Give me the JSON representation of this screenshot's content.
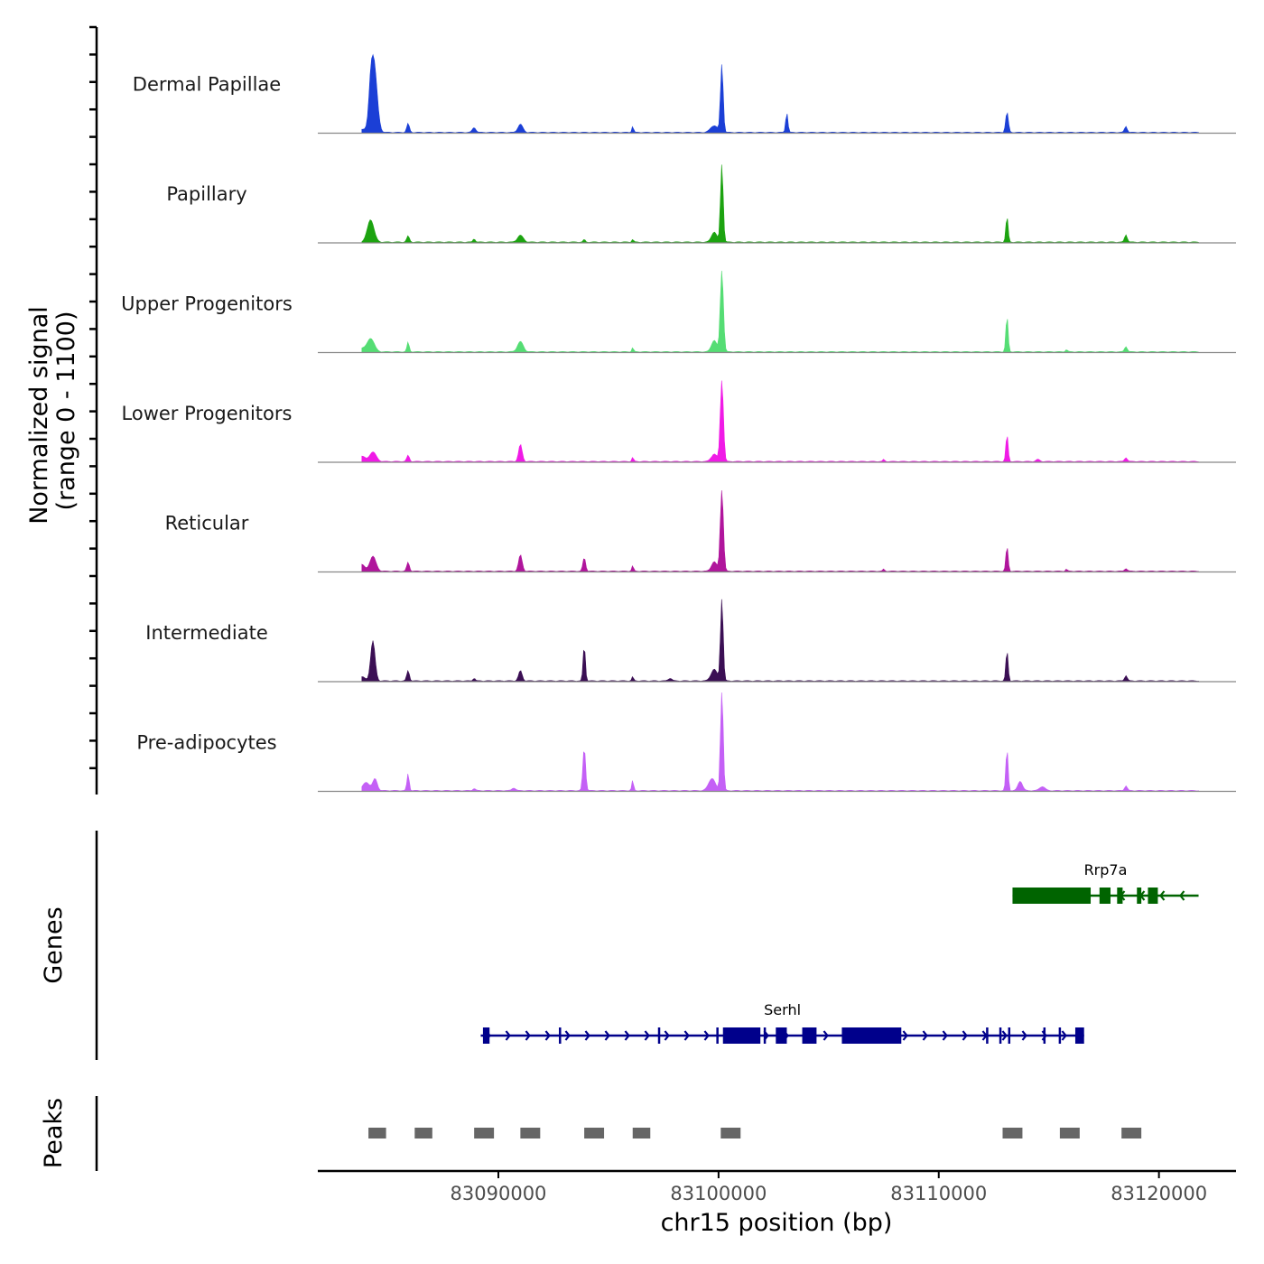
{
  "chart_data": {
    "type": "area",
    "title": "",
    "xlabel": "chr15 position (bp)",
    "ylabel_line1": "Normalized signal",
    "ylabel_line2": "(range 0 - 1100)",
    "ylim": [
      0,
      1100
    ],
    "xlim": [
      83081800,
      83123500
    ],
    "x_ticks": [
      83090000,
      83100000,
      83110000,
      83120000
    ],
    "x_tick_labels": [
      "83090000",
      "83100000",
      "83110000",
      "83120000"
    ],
    "baseline_color": "#888888",
    "tracks": [
      {
        "name": "Dermal Papillae",
        "color": "#1b3fd6",
        "peaks": [
          [
            83083800,
            50,
            180
          ],
          [
            83084200,
            380,
            90
          ],
          [
            83084350,
            1000,
            140
          ],
          [
            83085900,
            130,
            60
          ],
          [
            83088900,
            70,
            80
          ],
          [
            83091000,
            120,
            110
          ],
          [
            83096100,
            90,
            40
          ],
          [
            83099800,
            100,
            160
          ],
          [
            83100150,
            1000,
            60
          ],
          [
            83103100,
            290,
            50
          ],
          [
            83113100,
            300,
            60
          ],
          [
            83118500,
            90,
            60
          ]
        ]
      },
      {
        "name": "Papillary",
        "color": "#1ca310",
        "peaks": [
          [
            83084200,
            330,
            150
          ],
          [
            83085900,
            90,
            60
          ],
          [
            83088900,
            50,
            50
          ],
          [
            83091000,
            100,
            130
          ],
          [
            83093900,
            40,
            40
          ],
          [
            83096100,
            40,
            40
          ],
          [
            83099800,
            150,
            120
          ],
          [
            83100150,
            1150,
            60
          ],
          [
            83113100,
            380,
            50
          ],
          [
            83118500,
            110,
            60
          ]
        ]
      },
      {
        "name": "Upper Progenitors",
        "color": "#55dd74",
        "peaks": [
          [
            83083800,
            50,
            120
          ],
          [
            83084200,
            200,
            160
          ],
          [
            83085900,
            140,
            50
          ],
          [
            83091000,
            150,
            130
          ],
          [
            83096100,
            60,
            40
          ],
          [
            83099800,
            170,
            120
          ],
          [
            83100150,
            1200,
            70
          ],
          [
            83113100,
            530,
            50
          ],
          [
            83115800,
            30,
            50
          ],
          [
            83118500,
            80,
            60
          ]
        ]
      },
      {
        "name": "Lower Progenitors",
        "color": "#f01ae6",
        "peaks": [
          [
            83083800,
            80,
            140
          ],
          [
            83084300,
            140,
            150
          ],
          [
            83085900,
            90,
            60
          ],
          [
            83091000,
            250,
            80
          ],
          [
            83096100,
            60,
            40
          ],
          [
            83099800,
            110,
            130
          ],
          [
            83100150,
            1200,
            70
          ],
          [
            83107500,
            30,
            40
          ],
          [
            83113100,
            400,
            50
          ],
          [
            83114500,
            30,
            80
          ],
          [
            83118500,
            60,
            60
          ]
        ]
      },
      {
        "name": "Reticular",
        "color": "#b0159c",
        "peaks": [
          [
            83083800,
            100,
            120
          ],
          [
            83084300,
            220,
            140
          ],
          [
            83085900,
            130,
            60
          ],
          [
            83091000,
            240,
            80
          ],
          [
            83093900,
            200,
            60
          ],
          [
            83096100,
            80,
            40
          ],
          [
            83099800,
            140,
            120
          ],
          [
            83100150,
            1200,
            70
          ],
          [
            83107500,
            30,
            40
          ],
          [
            83113100,
            370,
            50
          ],
          [
            83115800,
            30,
            40
          ],
          [
            83118500,
            40,
            60
          ]
        ]
      },
      {
        "name": "Intermediate",
        "color": "#3b0f54",
        "peaks": [
          [
            83083800,
            60,
            140
          ],
          [
            83084300,
            590,
            100
          ],
          [
            83085900,
            150,
            60
          ],
          [
            83088900,
            40,
            50
          ],
          [
            83091000,
            150,
            80
          ],
          [
            83093900,
            530,
            50
          ],
          [
            83096100,
            60,
            40
          ],
          [
            83097800,
            40,
            80
          ],
          [
            83099800,
            170,
            140
          ],
          [
            83100150,
            1210,
            60
          ],
          [
            83113100,
            450,
            50
          ],
          [
            83118500,
            80,
            60
          ]
        ]
      },
      {
        "name": "Pre-adipocytes",
        "color": "#c460f6",
        "peaks": [
          [
            83084000,
            120,
            160
          ],
          [
            83084400,
            170,
            100
          ],
          [
            83085900,
            250,
            50
          ],
          [
            83088900,
            30,
            60
          ],
          [
            83090700,
            40,
            80
          ],
          [
            83093900,
            640,
            60
          ],
          [
            83096100,
            150,
            40
          ],
          [
            83099700,
            180,
            150
          ],
          [
            83100150,
            1530,
            60
          ],
          [
            83113100,
            620,
            50
          ],
          [
            83113700,
            140,
            100
          ],
          [
            83114700,
            60,
            120
          ],
          [
            83118500,
            70,
            60
          ]
        ]
      }
    ],
    "genes_label": "Genes",
    "genes": [
      {
        "name": "Rrp7a",
        "color": "#006400",
        "strand": "-",
        "start": 83113350,
        "end": 83121800,
        "exons": [
          [
            83113350,
            83116900
          ],
          [
            83117300,
            83117800
          ],
          [
            83118100,
            83118350
          ],
          [
            83119000,
            83119200
          ],
          [
            83119500,
            83119950
          ]
        ]
      },
      {
        "name": "Serhl",
        "color": "#00008b",
        "strand": "+",
        "start": 83089200,
        "end": 83116600,
        "exons": [
          [
            83089300,
            83089600
          ],
          [
            83100200,
            83101900
          ],
          [
            83102600,
            83103100
          ],
          [
            83103800,
            83104450
          ],
          [
            83105600,
            83108300
          ],
          [
            83116200,
            83116600
          ]
        ],
        "markers": [
          83092800,
          83097300,
          83099950,
          83102100,
          83112200,
          83112800,
          83113200,
          83114800,
          83115500
        ]
      }
    ],
    "peaks_label": "Peaks",
    "peak_color": "#666666",
    "peak_regions": [
      [
        83084100,
        83084900
      ],
      [
        83086200,
        83087000
      ],
      [
        83088900,
        83089800
      ],
      [
        83091000,
        83091900
      ],
      [
        83093900,
        83094800
      ],
      [
        83096100,
        83096900
      ],
      [
        83100100,
        83101000
      ],
      [
        83112900,
        83113800
      ],
      [
        83115500,
        83116400
      ],
      [
        83118300,
        83119200
      ]
    ]
  }
}
